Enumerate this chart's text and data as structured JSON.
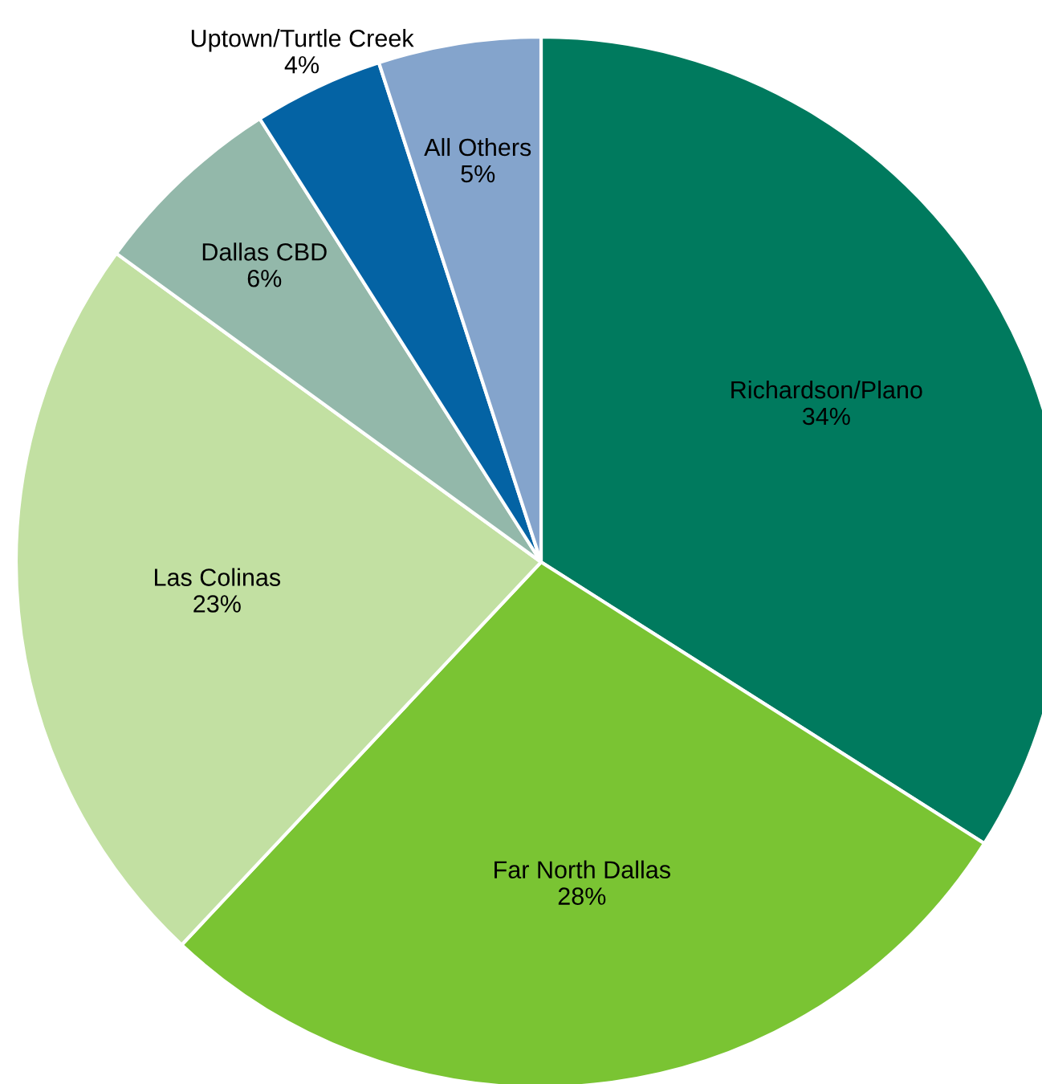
{
  "chart_data": {
    "type": "pie",
    "categories": [
      "Richardson/Plano",
      "Far North Dallas",
      "Las Colinas",
      "Dallas CBD",
      "Uptown/Turtle Creek",
      "All Others"
    ],
    "values": [
      34,
      28,
      23,
      6,
      4,
      5
    ],
    "value_labels": [
      "34%",
      "28%",
      "23%",
      "6%",
      "4%",
      "5%"
    ],
    "colors": [
      "#007a5e",
      "#7ac433",
      "#c2e0a2",
      "#93b8aa",
      "#0463a4",
      "#84a4cc"
    ],
    "legend": false
  }
}
